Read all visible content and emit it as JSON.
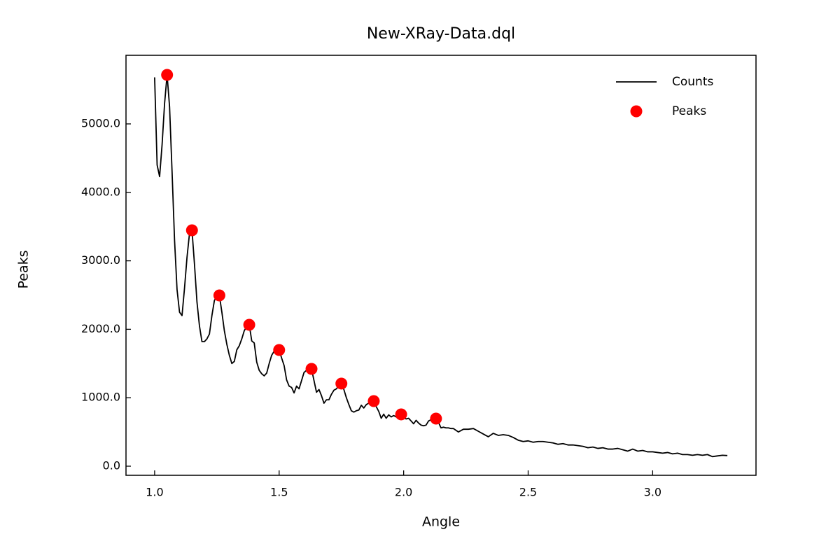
{
  "chart_data": {
    "type": "line",
    "title": "New-XRay-Data.dql",
    "x_label": "Angle",
    "y_label": "Peaks",
    "xlim": [
      0.885,
      3.415
    ],
    "ylim": [
      -133,
      6002
    ],
    "xticks": [
      {
        "value": 1,
        "label": "1.0"
      },
      {
        "value": 1.5,
        "label": "1.5"
      },
      {
        "value": 2,
        "label": "2.0"
      },
      {
        "value": 2.5,
        "label": "2.5"
      },
      {
        "value": 3,
        "label": "3.0"
      }
    ],
    "yticks": [
      {
        "value": 0,
        "label": "0.0"
      },
      {
        "value": 1000,
        "label": "1000.0"
      },
      {
        "value": 2000,
        "label": "2000.0"
      },
      {
        "value": 3000,
        "label": "3000.0"
      },
      {
        "value": 4000,
        "label": "4000.0"
      },
      {
        "value": 5000,
        "label": "5000.0"
      }
    ],
    "legend": "upper right",
    "series": [
      {
        "name": "Counts",
        "color": "#000000",
        "mode": "line",
        "x": [
          1.0,
          1.01,
          1.02,
          1.03,
          1.04,
          1.05,
          1.06,
          1.07,
          1.08,
          1.09,
          1.1,
          1.11,
          1.12,
          1.13,
          1.14,
          1.15,
          1.16,
          1.17,
          1.18,
          1.19,
          1.2,
          1.21,
          1.22,
          1.23,
          1.24,
          1.25,
          1.26,
          1.27,
          1.28,
          1.29,
          1.3,
          1.31,
          1.32,
          1.33,
          1.34,
          1.35,
          1.36,
          1.37,
          1.38,
          1.39,
          1.4,
          1.41,
          1.42,
          1.43,
          1.44,
          1.45,
          1.46,
          1.47,
          1.48,
          1.49,
          1.5,
          1.51,
          1.52,
          1.53,
          1.54,
          1.55,
          1.56,
          1.57,
          1.58,
          1.59,
          1.6,
          1.61,
          1.62,
          1.63,
          1.64,
          1.65,
          1.66,
          1.67,
          1.68,
          1.69,
          1.7,
          1.71,
          1.72,
          1.73,
          1.74,
          1.75,
          1.76,
          1.77,
          1.78,
          1.79,
          1.8,
          1.81,
          1.82,
          1.83,
          1.84,
          1.85,
          1.86,
          1.87,
          1.88,
          1.89,
          1.9,
          1.91,
          1.92,
          1.93,
          1.94,
          1.95,
          1.96,
          1.97,
          1.98,
          1.99,
          2.0,
          2.01,
          2.02,
          2.03,
          2.04,
          2.05,
          2.06,
          2.07,
          2.08,
          2.09,
          2.1,
          2.11,
          2.12,
          2.13,
          2.14,
          2.15,
          2.16,
          2.17,
          2.18,
          2.19,
          2.2,
          2.22,
          2.24,
          2.26,
          2.28,
          2.3,
          2.32,
          2.34,
          2.36,
          2.38,
          2.4,
          2.42,
          2.44,
          2.46,
          2.48,
          2.5,
          2.52,
          2.54,
          2.56,
          2.58,
          2.6,
          2.62,
          2.64,
          2.66,
          2.68,
          2.7,
          2.72,
          2.74,
          2.76,
          2.78,
          2.8,
          2.82,
          2.84,
          2.86,
          2.88,
          2.9,
          2.92,
          2.94,
          2.96,
          2.98,
          3.0,
          3.02,
          3.04,
          3.06,
          3.08,
          3.1,
          3.12,
          3.14,
          3.16,
          3.18,
          3.2,
          3.22,
          3.24,
          3.26,
          3.28,
          3.3
        ],
        "values": [
          5680,
          4400,
          4230,
          4700,
          5300,
          5716,
          5250,
          4300,
          3300,
          2580,
          2250,
          2200,
          2600,
          3050,
          3400,
          3446,
          2950,
          2400,
          2050,
          1820,
          1820,
          1860,
          1930,
          2200,
          2420,
          2480,
          2495,
          2250,
          1980,
          1780,
          1620,
          1500,
          1530,
          1700,
          1760,
          1860,
          1980,
          2040,
          2065,
          1830,
          1800,
          1520,
          1400,
          1350,
          1320,
          1360,
          1500,
          1620,
          1680,
          1690,
          1697,
          1580,
          1470,
          1260,
          1170,
          1150,
          1070,
          1170,
          1130,
          1250,
          1370,
          1400,
          1410,
          1421,
          1250,
          1080,
          1120,
          1030,
          920,
          970,
          970,
          1050,
          1110,
          1130,
          1180,
          1207,
          1120,
          1000,
          900,
          810,
          790,
          810,
          820,
          890,
          850,
          900,
          920,
          940,
          951,
          870,
          800,
          700,
          760,
          700,
          750,
          720,
          740,
          720,
          745,
          757,
          720,
          690,
          700,
          660,
          620,
          670,
          630,
          600,
          590,
          600,
          660,
          680,
          690,
          695,
          640,
          560,
          570,
          560,
          560,
          550,
          550,
          500,
          540,
          540,
          550,
          510,
          470,
          430,
          480,
          450,
          460,
          450,
          420,
          380,
          360,
          370,
          350,
          360,
          360,
          350,
          340,
          320,
          330,
          310,
          310,
          300,
          290,
          270,
          280,
          260,
          270,
          250,
          250,
          260,
          240,
          220,
          250,
          220,
          230,
          210,
          210,
          200,
          190,
          200,
          180,
          190,
          170,
          170,
          160,
          170,
          160,
          170,
          140,
          150,
          160,
          155
        ]
      },
      {
        "name": "Peaks",
        "color": "#ff0000",
        "mode": "markers",
        "x": [
          1.05,
          1.15,
          1.26,
          1.38,
          1.5,
          1.63,
          1.75,
          1.88,
          1.99,
          2.13
        ],
        "values": [
          5716,
          3446,
          2495,
          2065,
          1697,
          1421,
          1207,
          951,
          757,
          695
        ]
      }
    ]
  }
}
